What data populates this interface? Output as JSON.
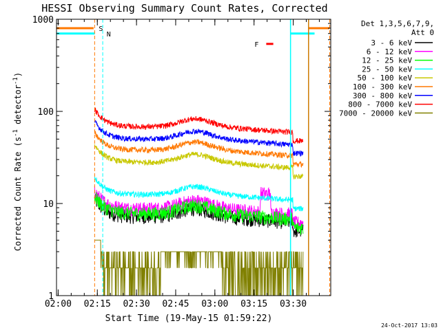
{
  "chart_data": {
    "type": "line",
    "title": "HESSI Observing Summary Count Rates, Corrected",
    "xlabel": "Start Time (19-May-15 01:59:22)",
    "ylabel_main": "Corrected Count Rate (s",
    "ylabel_sup1": "-1",
    "ylabel_mid": " detector",
    "ylabel_sup2": "-1",
    "ylabel_end": ")",
    "x_ticks": [
      "02:00",
      "02:15",
      "02:30",
      "02:45",
      "03:00",
      "03:15",
      "03:30"
    ],
    "x_tick_minutes": [
      0.63,
      15.63,
      30.63,
      45.63,
      60.63,
      75.63,
      90.63
    ],
    "xlim_minutes": [
      0,
      105
    ],
    "y_scale": "log",
    "ylim": [
      1,
      1000
    ],
    "y_ticks": [
      "1",
      "10",
      "100",
      "1000"
    ],
    "legend_position": "right",
    "legend_header": [
      "Det 1,3,5,6,7,9,",
      "Att 0"
    ],
    "series": [
      {
        "name": "3 - 6 keV",
        "color": "#000000",
        "base": 7.2
      },
      {
        "name": "6 - 12 keV",
        "color": "#ff00ff",
        "base": 8.8
      },
      {
        "name": "12 - 25 keV",
        "color": "#00ff00",
        "base": 7.8
      },
      {
        "name": "25 - 50 keV",
        "color": "#00ffff",
        "base": 12.5
      },
      {
        "name": "50 - 100 keV",
        "color": "#c8c800",
        "base": 28
      },
      {
        "name": "100 - 300 keV",
        "color": "#ff7800",
        "base": 38
      },
      {
        "name": "300 - 800 keV",
        "color": "#0000ff",
        "base": 50
      },
      {
        "name": "800 - 7000 keV",
        "color": "#ff0000",
        "base": 68
      },
      {
        "name": "7000 - 20000 keV",
        "color": "#808000",
        "base": 2
      }
    ],
    "flag_labels": {
      "s": "S",
      "n": "N",
      "f": "F"
    },
    "flag_colors": {
      "s": "#ff7800",
      "n": "#00ffff",
      "f": "#ff0000",
      "orange_line": "#cc7a00"
    },
    "grid": false
  },
  "timestamp": "24-Oct-2017 13:03"
}
